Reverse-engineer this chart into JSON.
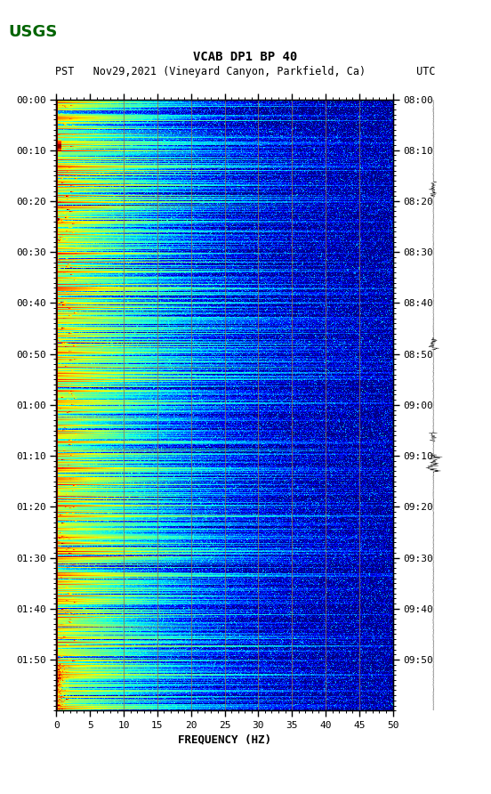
{
  "title_line1": "VCAB DP1 BP 40",
  "title_line2": "PST   Nov29,2021 (Vineyard Canyon, Parkfield, Ca)        UTC",
  "xlabel": "FREQUENCY (HZ)",
  "freq_min": 0,
  "freq_max": 50,
  "time_labels_left": [
    "00:00",
    "00:10",
    "00:20",
    "00:30",
    "00:40",
    "00:50",
    "01:00",
    "01:10",
    "01:20",
    "01:30",
    "01:40",
    "01:50"
  ],
  "time_labels_right": [
    "08:00",
    "08:10",
    "08:20",
    "08:30",
    "08:40",
    "08:50",
    "09:00",
    "09:10",
    "09:20",
    "09:30",
    "09:40",
    "09:50"
  ],
  "freq_ticks": [
    0,
    5,
    10,
    15,
    20,
    25,
    30,
    35,
    40,
    45,
    50
  ],
  "vert_lines_freq": [
    10,
    15,
    20,
    25,
    30,
    35,
    40,
    45
  ],
  "background_color": "#ffffff",
  "plot_bg_color": "#00008B",
  "colormap": "jet",
  "n_time_steps": 720,
  "n_freq_bins": 500
}
